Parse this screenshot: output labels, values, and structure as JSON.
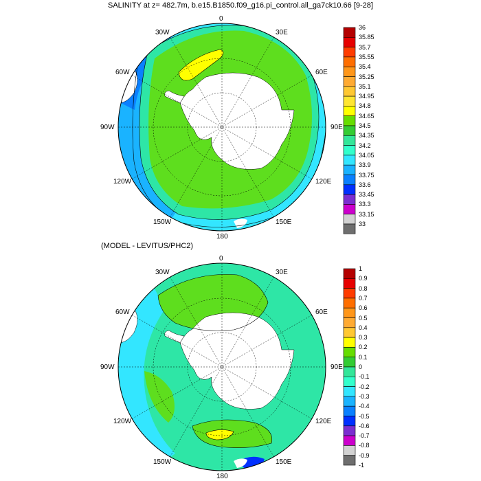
{
  "top": {
    "title": "SALINITY at z= 482.7m, b.e15.B1850.f09_g16.pi_control.all_ga7ck10.66 [9-28]",
    "lon_labels": {
      "n": "0",
      "ne": "30E",
      "e1": "60E",
      "e": "90E",
      "se1": "120E",
      "se": "150E",
      "s": "180",
      "sw": "150W",
      "sw1": "120W",
      "w": "90W",
      "w1": "60W",
      "nw": "30W"
    },
    "colorbar": {
      "labels": [
        "36",
        "35.85",
        "35.7",
        "35.55",
        "35.4",
        "35.25",
        "35.1",
        "34.95",
        "34.8",
        "34.65",
        "34.5",
        "34.35",
        "34.2",
        "34.05",
        "33.9",
        "33.75",
        "33.6",
        "33.45",
        "33.3",
        "33.15",
        "33"
      ],
      "colors": [
        "#b40000",
        "#e60000",
        "#ff3c00",
        "#ff6e00",
        "#ff9619",
        "#ffaa32",
        "#ffc832",
        "#ffe632",
        "#ffff00",
        "#66dd00",
        "#33cc33",
        "#33e699",
        "#33ffcc",
        "#33e6ff",
        "#1ab3ff",
        "#0a80ff",
        "#0030ff",
        "#7b2ed0",
        "#cc00cc",
        "#d2d2d2",
        "#6e6e6e"
      ]
    },
    "field_colors": {
      "land": "#ffffff",
      "green": "#5ede1e",
      "teal": "#2ee6a6",
      "cyan": "#33e6ff",
      "lightblue": "#1ab3ff",
      "blue": "#0a80ff",
      "yellow": "#ffff00"
    }
  },
  "bottom": {
    "subtitle": "(MODEL - LEVITUS/PHC2)",
    "lon_labels": {
      "n": "0",
      "ne": "30E",
      "e1": "60E",
      "e": "90E",
      "se1": "120E",
      "se": "150E",
      "s": "180",
      "sw": "150W",
      "sw1": "120W",
      "w": "90W",
      "w1": "60W",
      "nw": "30W"
    },
    "colorbar": {
      "labels": [
        "1",
        "0.9",
        "0.8",
        "0.7",
        "0.6",
        "0.5",
        "0.4",
        "0.3",
        "0.2",
        "0.1",
        "0",
        "-0.1",
        "-0.2",
        "-0.3",
        "-0.4",
        "-0.5",
        "-0.6",
        "-0.7",
        "-0.8",
        "-0.9",
        "-1"
      ],
      "colors": [
        "#b40000",
        "#e60000",
        "#ff3c00",
        "#ff6e00",
        "#ff9619",
        "#ffaa32",
        "#ffc832",
        "#ffff00",
        "#66dd00",
        "#33cc33",
        "#33e699",
        "#33ffcc",
        "#33e6ff",
        "#1ab3ff",
        "#0a80ff",
        "#0030ff",
        "#7b2ed0",
        "#cc00cc",
        "#d2d2d2",
        "#6e6e6e"
      ]
    },
    "field_colors": {
      "land": "#ffffff",
      "green": "#5ede1e",
      "teal": "#2ee6a6",
      "cyan": "#33e6ff",
      "lightblue": "#1ab3ff",
      "blue": "#0030ff",
      "yellow": "#ffff00"
    }
  }
}
